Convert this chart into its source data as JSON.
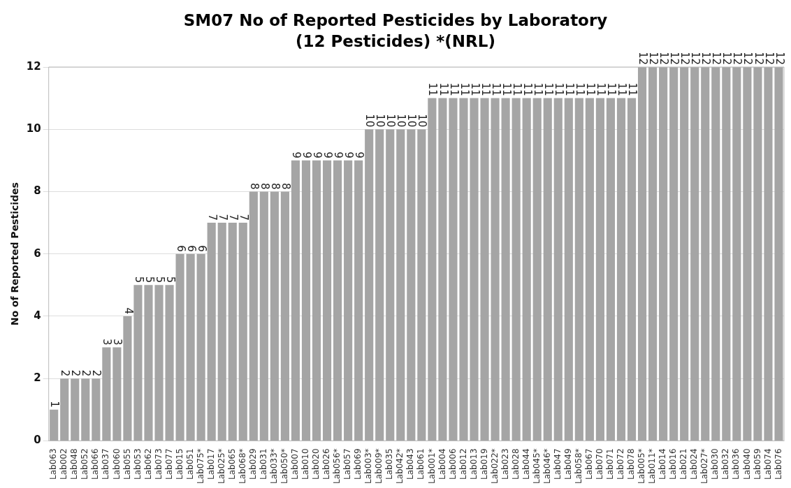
{
  "chart_data": {
    "type": "bar",
    "title": "SM07 No of Reported Pesticides by Laboratory\n(12 Pesticides)    *(NRL)",
    "ylabel": "No of Reported Pesticides",
    "categories": [
      "Lab063",
      "Lab002",
      "Lab048",
      "Lab052",
      "Lab066",
      "Lab037",
      "Lab060",
      "Lab055",
      "Lab053",
      "Lab062",
      "Lab073",
      "Lab077",
      "Lab015",
      "Lab051",
      "Lab075*",
      "Lab017",
      "Lab025*",
      "Lab065",
      "Lab068*",
      "Lab029",
      "Lab031",
      "Lab033*",
      "Lab050*",
      "Lab007",
      "Lab010",
      "Lab020",
      "Lab026",
      "Lab056*",
      "Lab057",
      "Lab069",
      "Lab003*",
      "Lab009*",
      "Lab035",
      "Lab042*",
      "Lab043",
      "Lab061",
      "Lab001*",
      "Lab004",
      "Lab006",
      "Lab012",
      "Lab013",
      "Lab019",
      "Lab022*",
      "Lab023",
      "Lab028",
      "Lab044",
      "Lab045*",
      "Lab046*",
      "Lab047",
      "Lab049",
      "Lab058*",
      "Lab067",
      "Lab070",
      "Lab071",
      "Lab072",
      "Lab078",
      "Lab005*",
      "Lab011*",
      "Lab014",
      "Lab016",
      "Lab021",
      "Lab024",
      "Lab027*",
      "Lab030",
      "Lab032",
      "Lab036",
      "Lab040",
      "Lab059",
      "Lab074",
      "Lab076"
    ],
    "values": [
      1,
      2,
      2,
      2,
      2,
      3,
      3,
      4,
      5,
      5,
      5,
      5,
      6,
      6,
      6,
      7,
      7,
      7,
      7,
      8,
      8,
      8,
      8,
      9,
      9,
      9,
      9,
      9,
      9,
      9,
      10,
      10,
      10,
      10,
      10,
      10,
      11,
      11,
      11,
      11,
      11,
      11,
      11,
      11,
      11,
      11,
      11,
      11,
      11,
      11,
      11,
      11,
      11,
      11,
      11,
      11,
      12,
      12,
      12,
      12,
      12,
      12,
      12,
      12,
      12,
      12,
      12,
      12,
      12,
      12
    ],
    "color": "#a5a5a5",
    "ylim": [
      0,
      12
    ],
    "yticks": [
      0,
      2,
      4,
      6,
      8,
      10,
      12
    ],
    "grid": "y",
    "data_labels": true
  }
}
